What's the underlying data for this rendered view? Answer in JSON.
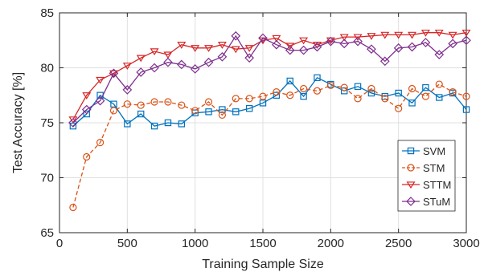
{
  "chart_data": {
    "type": "line",
    "title": "",
    "xlabel": "Training Sample Size",
    "ylabel": "Test Accuracy [%]",
    "xlim": [
      0,
      3000
    ],
    "ylim": [
      65,
      85
    ],
    "xticks": [
      0,
      500,
      1000,
      1500,
      2000,
      2500,
      3000
    ],
    "yticks": [
      65,
      70,
      75,
      80,
      85
    ],
    "grid": true,
    "legend_position": "right",
    "x": [
      100,
      200,
      300,
      400,
      500,
      600,
      700,
      800,
      900,
      1000,
      1100,
      1200,
      1300,
      1400,
      1500,
      1600,
      1700,
      1800,
      1900,
      2000,
      2100,
      2200,
      2300,
      2400,
      2500,
      2600,
      2700,
      2800,
      2900,
      3000
    ],
    "series": [
      {
        "name": "SVM",
        "color": "#0072BD",
        "marker": "square",
        "dash": "solid",
        "values": [
          74.7,
          75.8,
          77.5,
          76.7,
          74.9,
          75.8,
          74.7,
          75.0,
          74.9,
          75.9,
          76.0,
          76.2,
          76.0,
          76.3,
          76.8,
          77.5,
          78.8,
          77.4,
          79.1,
          78.5,
          77.9,
          78.3,
          77.7,
          77.4,
          77.7,
          76.8,
          78.2,
          77.3,
          77.7,
          76.2
        ]
      },
      {
        "name": "STM",
        "color": "#D95319",
        "marker": "circle",
        "dash": "dashed",
        "values": [
          67.3,
          71.9,
          73.2,
          76.1,
          76.7,
          76.6,
          76.9,
          76.9,
          76.6,
          76.1,
          76.9,
          75.7,
          77.2,
          77.2,
          77.4,
          77.8,
          77.5,
          78.1,
          77.9,
          78.4,
          78.2,
          77.2,
          78.1,
          77.2,
          76.3,
          78.1,
          77.4,
          78.5,
          77.8,
          77.4
        ]
      },
      {
        "name": "STTM",
        "color": "#D62728",
        "marker": "triangle-down",
        "dash": "solid",
        "values": [
          75.3,
          77.5,
          78.9,
          79.5,
          80.2,
          80.9,
          81.5,
          81.2,
          82.1,
          81.8,
          81.8,
          82.1,
          81.7,
          81.8,
          82.5,
          82.7,
          82.0,
          82.5,
          82.1,
          82.5,
          82.8,
          82.8,
          82.9,
          83.0,
          83.0,
          83.0,
          83.2,
          83.2,
          83.0,
          83.2
        ]
      },
      {
        "name": "STuM",
        "color": "#7E2F8E",
        "marker": "diamond",
        "dash": "solid",
        "values": [
          75.0,
          76.2,
          77.0,
          79.5,
          78.0,
          79.6,
          80.0,
          80.5,
          80.3,
          79.9,
          80.5,
          81.0,
          82.9,
          80.9,
          82.7,
          82.1,
          81.6,
          81.6,
          81.9,
          82.4,
          82.2,
          82.4,
          81.7,
          80.6,
          81.8,
          81.9,
          82.3,
          81.2,
          82.2,
          82.5
        ]
      }
    ]
  }
}
